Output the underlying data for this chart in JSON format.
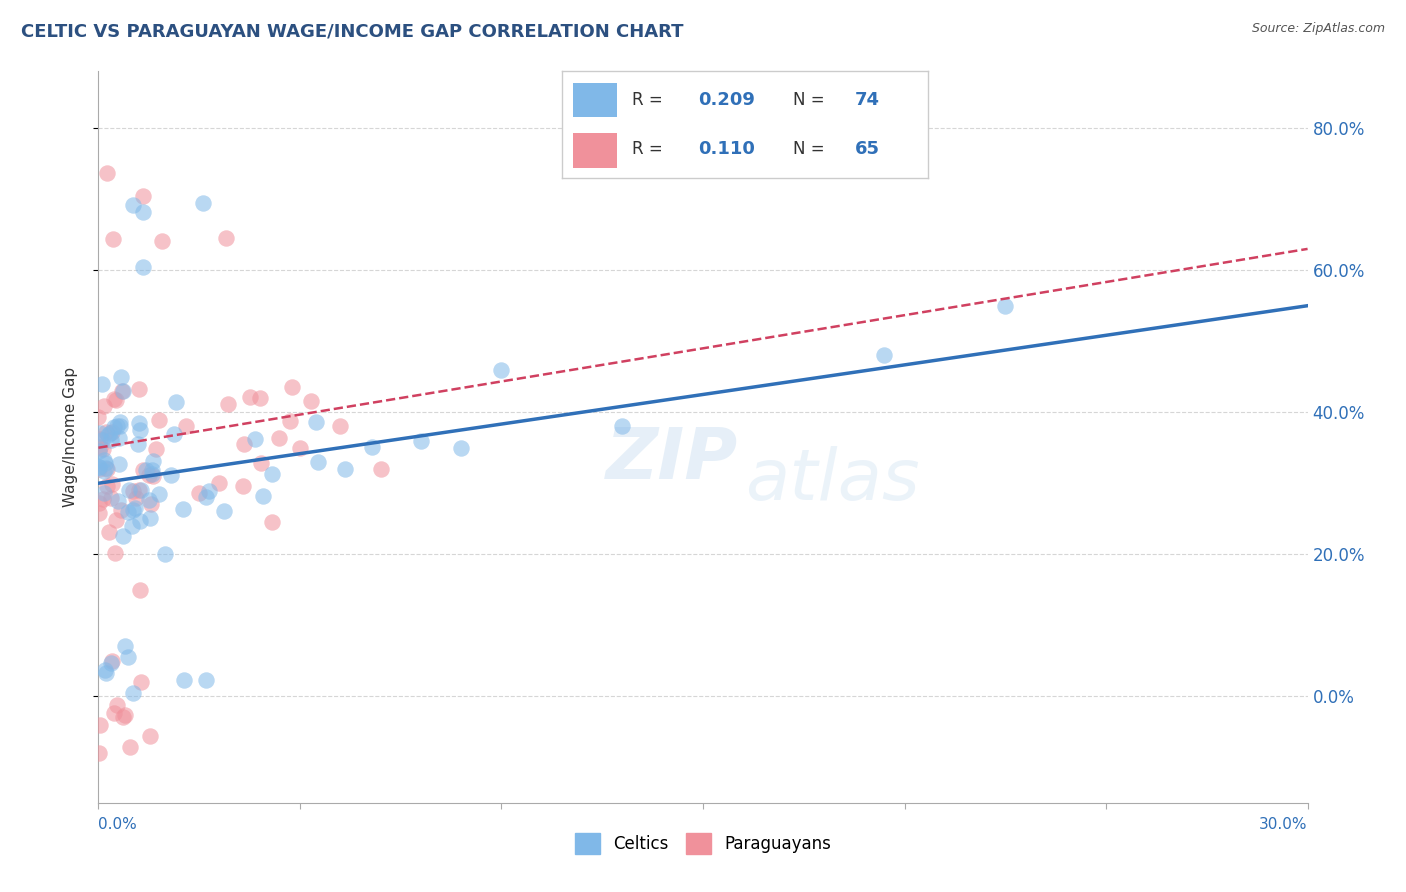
{
  "title": "CELTIC VS PARAGUAYAN WAGE/INCOME GAP CORRELATION CHART",
  "source": "Source: ZipAtlas.com",
  "ylabel": "Wage/Income Gap",
  "watermark_line1": "ZIP",
  "watermark_line2": "atlas",
  "xlim": [
    0.0,
    0.3
  ],
  "ylim": [
    -0.15,
    0.88
  ],
  "celtics_R": 0.209,
  "celtics_N": 74,
  "paraguayans_R": 0.11,
  "paraguayans_N": 65,
  "celtics_color": "#80b8e8",
  "paraguayans_color": "#f0919b",
  "trend_celtics_color": "#3070b8",
  "trend_paraguayans_color": "#d04060",
  "background_color": "#ffffff",
  "grid_color": "#cccccc",
  "ytick_vals": [
    0.0,
    0.2,
    0.4,
    0.6,
    0.8
  ],
  "ytick_labels": [
    "0.0%",
    "20.0%",
    "40.0%",
    "60.0%",
    "80.0%"
  ],
  "celtics_trend_x0": 0.0,
  "celtics_trend_y0": 0.3,
  "celtics_trend_x1": 0.3,
  "celtics_trend_y1": 0.55,
  "paraguayans_trend_x0": 0.0,
  "paraguayans_trend_y0": 0.35,
  "paraguayans_trend_x1": 0.3,
  "paraguayans_trend_y1": 0.63,
  "axis_label_color": "#3070b8",
  "title_color": "#2c5080",
  "text_color": "#333333"
}
